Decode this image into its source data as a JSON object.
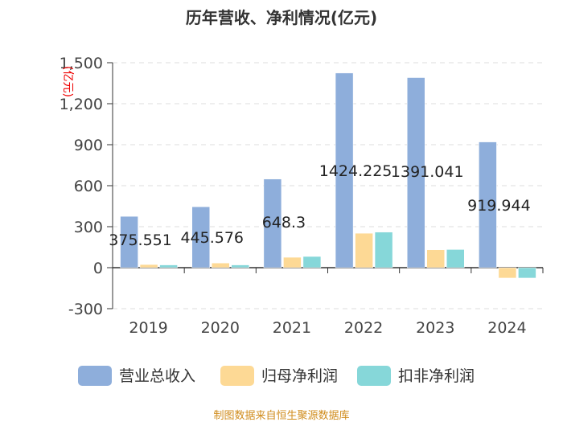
{
  "chart_data": {
    "type": "bar",
    "title": "历年营收、净利情况(亿元)",
    "ylabel": "(亿元)",
    "xlabel": "",
    "ylim": [
      -300,
      1500
    ],
    "yticks": [
      -300,
      0,
      300,
      600,
      900,
      1200,
      1500
    ],
    "ytick_labels": [
      "-300",
      "0",
      "300",
      "600",
      "900",
      "1,200",
      "1,500"
    ],
    "categories": [
      "2019",
      "2020",
      "2021",
      "2022",
      "2023",
      "2024"
    ],
    "series": [
      {
        "name": "营业总收入",
        "color": "#8eaedb",
        "values": [
          375.551,
          445.576,
          648.3,
          1424.225,
          1391.041,
          919.944
        ]
      },
      {
        "name": "归母净利润",
        "color": "#fdd995",
        "values": [
          23,
          34,
          76,
          252,
          131,
          -76
        ]
      },
      {
        "name": "扣非净利润",
        "color": "#86d7d9",
        "values": [
          20,
          20,
          82,
          260,
          133,
          -76
        ]
      }
    ],
    "data_labels": [
      "375.551",
      "445.576",
      "648.3",
      "1424.225",
      "1391.041",
      "919.944"
    ],
    "grid": true,
    "legend": "bottom"
  },
  "footer": "制图数据来自恒生聚源数据库"
}
